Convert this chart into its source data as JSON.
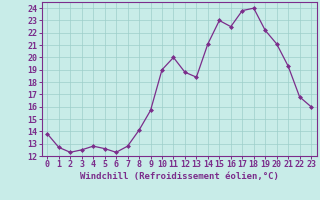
{
  "x": [
    0,
    1,
    2,
    3,
    4,
    5,
    6,
    7,
    8,
    9,
    10,
    11,
    12,
    13,
    14,
    15,
    16,
    17,
    18,
    19,
    20,
    21,
    22,
    23
  ],
  "y": [
    13.8,
    12.7,
    12.3,
    12.5,
    12.8,
    12.6,
    12.3,
    12.8,
    14.1,
    15.7,
    19.0,
    20.0,
    18.8,
    18.4,
    21.1,
    23.0,
    22.5,
    23.8,
    24.0,
    22.2,
    21.1,
    19.3,
    16.8,
    16.0
  ],
  "line_color": "#7B2D8B",
  "marker_color": "#7B2D8B",
  "bg_color": "#c8ece8",
  "grid_color": "#9dcfca",
  "spine_color": "#7B2D8B",
  "tick_color": "#7B2D8B",
  "label_color": "#7B2D8B",
  "xlabel": "Windchill (Refroidissement éolien,°C)",
  "xlim": [
    -0.5,
    23.5
  ],
  "ylim": [
    12.0,
    24.5
  ],
  "yticks": [
    12,
    13,
    14,
    15,
    16,
    17,
    18,
    19,
    20,
    21,
    22,
    23,
    24
  ],
  "xticks": [
    0,
    1,
    2,
    3,
    4,
    5,
    6,
    7,
    8,
    9,
    10,
    11,
    12,
    13,
    14,
    15,
    16,
    17,
    18,
    19,
    20,
    21,
    22,
    23
  ],
  "tick_fontsize": 6.0,
  "label_fontsize": 6.5
}
